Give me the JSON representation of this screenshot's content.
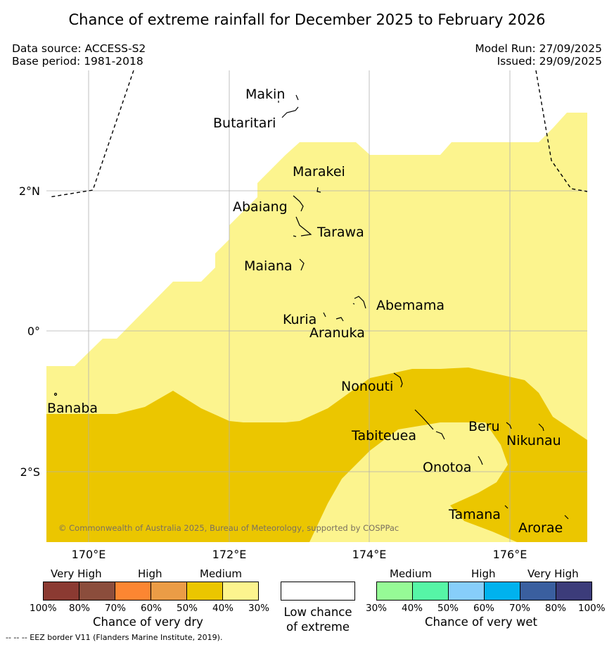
{
  "title": "Chance of extreme rainfall for December 2025 to February 2026",
  "meta": {
    "data_source": "Data source: ACCESS-S2",
    "base_period": "Base period: 1981-2018",
    "model_run": "Model Run: 27/09/2025",
    "issued": "Issued: 29/09/2025"
  },
  "map": {
    "lon_ticks": [
      "170°E",
      "172°E",
      "174°E",
      "176°E"
    ],
    "lat_ticks": [
      "2°N",
      "0°",
      "2°S"
    ],
    "places": [
      "Makin",
      "Butaritari",
      "Marakei",
      "Abaiang",
      "Tarawa",
      "Maiana",
      "Abemama",
      "Kuria",
      "Aranuka",
      "Nonouti",
      "Banaba",
      "Tabiteuea",
      "Beru",
      "Nikunau",
      "Onotoa",
      "Tamana",
      "Arorae"
    ],
    "copyright": "© Commonwealth of Australia 2025, Bureau of Meteorology, supported by COSPPac",
    "colors": {
      "dry_medium_30": "#fcf48e",
      "dry_medium_40": "#ebc600",
      "background": "#ffffff",
      "eez_border": "#000000"
    }
  },
  "legend": {
    "dry": {
      "categories": [
        "Very High",
        "High",
        "Medium"
      ],
      "ticks": [
        "100%",
        "80%",
        "70%",
        "60%",
        "50%",
        "40%",
        "30%"
      ],
      "colors": [
        "#8b3a32",
        "#8b4d3c",
        "#fc8632",
        "#eb9c46",
        "#ebc600",
        "#fcf48e"
      ],
      "label": "Chance of very dry"
    },
    "low": {
      "line1": "Low chance",
      "line2": "of extreme"
    },
    "wet": {
      "categories": [
        "Medium",
        "High",
        "Very High"
      ],
      "ticks": [
        "30%",
        "40%",
        "50%",
        "60%",
        "70%",
        "80%",
        "100%"
      ],
      "colors": [
        "#96fa96",
        "#56f5a6",
        "#87cefa",
        "#00b2ee",
        "#3a5f9f",
        "#3c3c7a"
      ],
      "label": "Chance of very wet"
    }
  },
  "footnote": "-- -- -- EEZ border V11 (Flanders Marine Institute, 2019)."
}
